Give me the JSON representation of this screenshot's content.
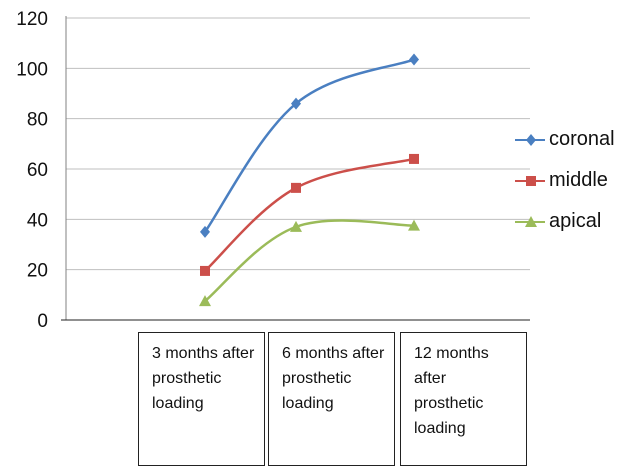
{
  "chart_data": {
    "type": "line",
    "categories": [
      "3 months after prosthetic loading",
      "6 months after prosthetic loading",
      "12 months after prosthetic loading"
    ],
    "series": [
      {
        "name": "coronal",
        "values": [
          35,
          86,
          103.5
        ],
        "color": "#4a7fc1",
        "marker": "diamond"
      },
      {
        "name": "middle",
        "values": [
          19.5,
          52.5,
          64
        ],
        "color": "#cc4f4a",
        "marker": "square"
      },
      {
        "name": "apical",
        "values": [
          7.5,
          37,
          37.5
        ],
        "color": "#9bbb59",
        "marker": "triangle"
      }
    ],
    "ylim": [
      0,
      120
    ],
    "yticks": [
      "0",
      "20",
      "40",
      "60",
      "80",
      "100",
      "120"
    ],
    "grid": true,
    "legend_position": "right",
    "smooth_lines": true
  }
}
